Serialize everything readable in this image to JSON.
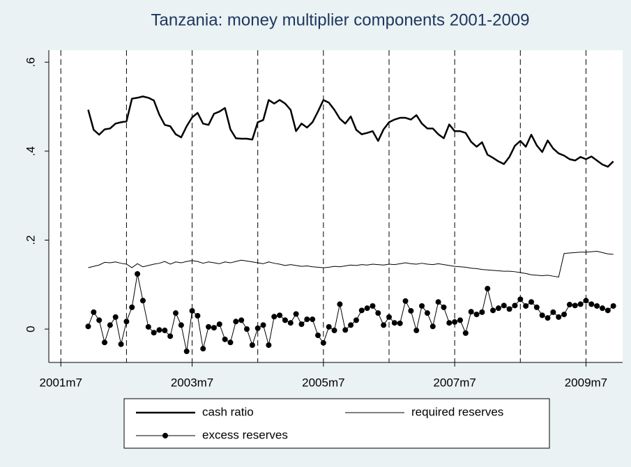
{
  "chart_data": {
    "type": "line",
    "title": "Tanzania: money multiplier components 2001-2009",
    "x": [
      503,
      504,
      505,
      506,
      507,
      508,
      509,
      510,
      511,
      512,
      513,
      514,
      515,
      516,
      517,
      518,
      519,
      520,
      521,
      522,
      523,
      524,
      525,
      526,
      527,
      528,
      529,
      530,
      531,
      532,
      533,
      534,
      535,
      536,
      537,
      538,
      539,
      540,
      541,
      542,
      543,
      544,
      545,
      546,
      547,
      548,
      549,
      550,
      551,
      552,
      553,
      554,
      555,
      556,
      557,
      558,
      559,
      560,
      561,
      562,
      563,
      564,
      565,
      566,
      567,
      568,
      569,
      570,
      571,
      572,
      573,
      574,
      575,
      576,
      577,
      578,
      579,
      580,
      581,
      582,
      583,
      584,
      585,
      586,
      587,
      588,
      589,
      590,
      591,
      592,
      593,
      594,
      595,
      596,
      597,
      598,
      599
    ],
    "series": [
      {
        "name": "cash ratio",
        "color": "#000000",
        "line_width": 2.5,
        "marker": "none",
        "values": [
          0.493,
          0.448,
          0.437,
          0.449,
          0.451,
          0.462,
          0.465,
          0.467,
          0.518,
          0.52,
          0.523,
          0.52,
          0.514,
          0.482,
          0.459,
          0.456,
          0.438,
          0.431,
          0.456,
          0.476,
          0.486,
          0.462,
          0.459,
          0.484,
          0.489,
          0.497,
          0.449,
          0.429,
          0.428,
          0.428,
          0.426,
          0.465,
          0.47,
          0.515,
          0.507,
          0.515,
          0.507,
          0.493,
          0.445,
          0.462,
          0.453,
          0.465,
          0.489,
          0.515,
          0.509,
          0.493,
          0.473,
          0.462,
          0.478,
          0.448,
          0.438,
          0.441,
          0.445,
          0.423,
          0.449,
          0.465,
          0.471,
          0.475,
          0.475,
          0.471,
          0.481,
          0.462,
          0.451,
          0.451,
          0.438,
          0.429,
          0.46,
          0.445,
          0.445,
          0.441,
          0.421,
          0.41,
          0.42,
          0.392,
          0.385,
          0.377,
          0.371,
          0.387,
          0.412,
          0.423,
          0.41,
          0.437,
          0.413,
          0.398,
          0.424,
          0.406,
          0.395,
          0.39,
          0.382,
          0.379,
          0.387,
          0.382,
          0.388,
          0.379,
          0.37,
          0.365,
          0.377
        ]
      },
      {
        "name": "required reserves",
        "color": "#000000",
        "line_width": 1,
        "marker": "none",
        "values": [
          0.138,
          0.141,
          0.144,
          0.15,
          0.149,
          0.151,
          0.148,
          0.146,
          0.138,
          0.147,
          0.14,
          0.143,
          0.146,
          0.148,
          0.152,
          0.146,
          0.151,
          0.149,
          0.152,
          0.154,
          0.152,
          0.148,
          0.151,
          0.149,
          0.147,
          0.151,
          0.149,
          0.152,
          0.155,
          0.153,
          0.151,
          0.149,
          0.147,
          0.151,
          0.148,
          0.146,
          0.143,
          0.145,
          0.143,
          0.141,
          0.142,
          0.14,
          0.139,
          0.138,
          0.139,
          0.141,
          0.14,
          0.142,
          0.144,
          0.143,
          0.145,
          0.144,
          0.146,
          0.145,
          0.144,
          0.146,
          0.145,
          0.147,
          0.149,
          0.147,
          0.146,
          0.148,
          0.146,
          0.145,
          0.147,
          0.145,
          0.143,
          0.141,
          0.14,
          0.139,
          0.137,
          0.136,
          0.134,
          0.133,
          0.132,
          0.131,
          0.13,
          0.13,
          0.129,
          0.127,
          0.125,
          0.122,
          0.121,
          0.12,
          0.121,
          0.119,
          0.117,
          0.17,
          0.171,
          0.172,
          0.173,
          0.173,
          0.174,
          0.175,
          0.172,
          0.169,
          0.168
        ]
      },
      {
        "name": "excess reserves",
        "color": "#000000",
        "line_width": 1,
        "marker": "circle",
        "values": [
          0.006,
          0.038,
          0.02,
          -0.03,
          0.009,
          0.027,
          -0.034,
          0.017,
          0.049,
          0.124,
          0.064,
          0.005,
          -0.008,
          -0.002,
          -0.003,
          -0.016,
          0.036,
          0.009,
          -0.05,
          0.041,
          0.03,
          -0.044,
          0.005,
          0.003,
          0.011,
          -0.023,
          -0.03,
          0.017,
          0.02,
          0,
          -0.036,
          0.002,
          0.009,
          -0.036,
          0.028,
          0.031,
          0.02,
          0.014,
          0.034,
          0.011,
          0.022,
          0.022,
          -0.014,
          -0.031,
          0.005,
          -0.003,
          0.056,
          -0.002,
          0.009,
          0.02,
          0.042,
          0.047,
          0.052,
          0.036,
          0.009,
          0.027,
          0.014,
          0.013,
          0.063,
          0.041,
          -0.003,
          0.052,
          0.036,
          0.006,
          0.061,
          0.049,
          0.014,
          0.016,
          0.02,
          -0.009,
          0.039,
          0.033,
          0.038,
          0.091,
          0.042,
          0.047,
          0.053,
          0.045,
          0.053,
          0.067,
          0.052,
          0.061,
          0.049,
          0.031,
          0.025,
          0.038,
          0.027,
          0.033,
          0.055,
          0.053,
          0.056,
          0.064,
          0.056,
          0.052,
          0.047,
          0.042,
          0.052
        ]
      }
    ],
    "xlim": [
      495.8,
      600.7
    ],
    "xticks": [
      {
        "value": 498,
        "label": "2001m7"
      },
      {
        "value": 522,
        "label": "2003m7"
      },
      {
        "value": 546,
        "label": "2005m7"
      },
      {
        "value": 570,
        "label": "2007m7"
      },
      {
        "value": 594,
        "label": "2009m7"
      }
    ],
    "xlines": [
      498,
      510,
      522,
      534,
      546,
      558,
      570,
      582,
      594
    ],
    "ylim": [
      -0.075,
      0.627
    ],
    "yticks": [
      0,
      {
        "value": 0.2,
        "label": ".2"
      },
      {
        "value": 0.4,
        "label": ".4"
      },
      {
        "value": 0.6,
        "label": ".6"
      }
    ],
    "grid": false
  }
}
